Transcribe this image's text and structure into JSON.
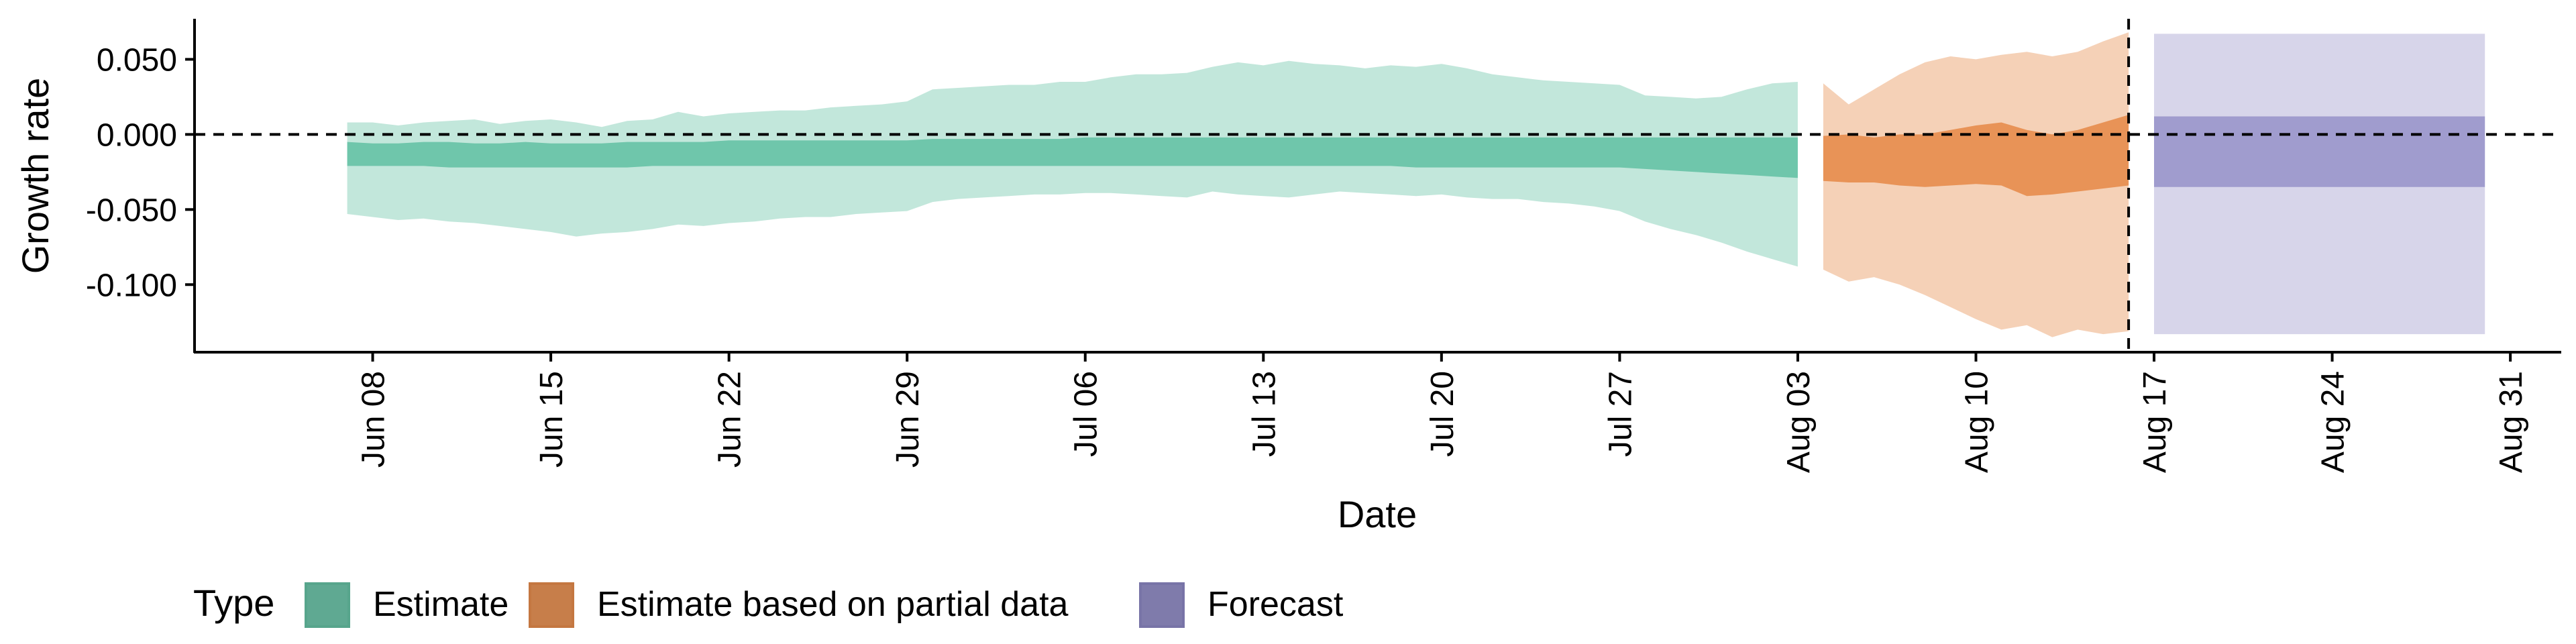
{
  "chart_data": {
    "type": "area",
    "title": "",
    "xlabel": "Date",
    "ylabel": "Growth rate",
    "grid": false,
    "x_type": "date",
    "xlim": [
      "2020-06-01",
      "2020-09-02"
    ],
    "ylim": [
      -0.145,
      0.077
    ],
    "x_ticks": [
      {
        "date": "2020-06-08",
        "label": "Jun 08"
      },
      {
        "date": "2020-06-15",
        "label": "Jun 15"
      },
      {
        "date": "2020-06-22",
        "label": "Jun 22"
      },
      {
        "date": "2020-06-29",
        "label": "Jun 29"
      },
      {
        "date": "2020-07-06",
        "label": "Jul 06"
      },
      {
        "date": "2020-07-13",
        "label": "Jul 13"
      },
      {
        "date": "2020-07-20",
        "label": "Jul 20"
      },
      {
        "date": "2020-07-27",
        "label": "Jul 27"
      },
      {
        "date": "2020-08-03",
        "label": "Aug 03"
      },
      {
        "date": "2020-08-10",
        "label": "Aug 10"
      },
      {
        "date": "2020-08-17",
        "label": "Aug 17"
      },
      {
        "date": "2020-08-24",
        "label": "Aug 24"
      },
      {
        "date": "2020-08-31",
        "label": "Aug 31"
      }
    ],
    "y_ticks": [
      {
        "value": 0.05,
        "label": "0.050"
      },
      {
        "value": 0.0,
        "label": "0.000"
      },
      {
        "value": -0.05,
        "label": "-0.050"
      },
      {
        "value": -0.1,
        "label": "-0.100"
      }
    ],
    "reference_lines": {
      "horizontal_y": 0.0,
      "vertical_date": "2020-08-16"
    },
    "legend": {
      "title": "Type",
      "position": "bottom-left",
      "entries": [
        "Estimate",
        "Estimate based on partial data",
        "Forecast"
      ]
    },
    "series": [
      {
        "name": "Estimate",
        "color": "#66c2a5",
        "outer_opacity": 0.4,
        "inner_opacity": 0.9,
        "x": [
          "2020-06-07",
          "2020-06-08",
          "2020-06-09",
          "2020-06-10",
          "2020-06-11",
          "2020-06-12",
          "2020-06-13",
          "2020-06-14",
          "2020-06-15",
          "2020-06-16",
          "2020-06-17",
          "2020-06-18",
          "2020-06-19",
          "2020-06-20",
          "2020-06-21",
          "2020-06-22",
          "2020-06-23",
          "2020-06-24",
          "2020-06-25",
          "2020-06-26",
          "2020-06-27",
          "2020-06-28",
          "2020-06-29",
          "2020-06-30",
          "2020-07-01",
          "2020-07-02",
          "2020-07-03",
          "2020-07-04",
          "2020-07-05",
          "2020-07-06",
          "2020-07-07",
          "2020-07-08",
          "2020-07-09",
          "2020-07-10",
          "2020-07-11",
          "2020-07-12",
          "2020-07-13",
          "2020-07-14",
          "2020-07-15",
          "2020-07-16",
          "2020-07-17",
          "2020-07-18",
          "2020-07-19",
          "2020-07-20",
          "2020-07-21",
          "2020-07-22",
          "2020-07-23",
          "2020-07-24",
          "2020-07-25",
          "2020-07-26",
          "2020-07-27",
          "2020-07-28",
          "2020-07-29",
          "2020-07-30",
          "2020-07-31",
          "2020-08-01",
          "2020-08-02",
          "2020-08-03"
        ],
        "outer_upper": [
          0.008,
          0.008,
          0.006,
          0.008,
          0.009,
          0.01,
          0.007,
          0.009,
          0.01,
          0.008,
          0.005,
          0.009,
          0.01,
          0.015,
          0.012,
          0.014,
          0.015,
          0.016,
          0.016,
          0.018,
          0.019,
          0.02,
          0.022,
          0.03,
          0.031,
          0.032,
          0.033,
          0.033,
          0.035,
          0.035,
          0.038,
          0.04,
          0.04,
          0.041,
          0.045,
          0.048,
          0.046,
          0.049,
          0.047,
          0.046,
          0.044,
          0.046,
          0.045,
          0.047,
          0.044,
          0.04,
          0.038,
          0.036,
          0.035,
          0.034,
          0.033,
          0.026,
          0.025,
          0.024,
          0.025,
          0.03,
          0.034,
          0.035
        ],
        "outer_lower": [
          -0.053,
          -0.055,
          -0.057,
          -0.056,
          -0.058,
          -0.059,
          -0.061,
          -0.063,
          -0.065,
          -0.068,
          -0.066,
          -0.065,
          -0.063,
          -0.06,
          -0.061,
          -0.059,
          -0.058,
          -0.056,
          -0.055,
          -0.055,
          -0.053,
          -0.052,
          -0.051,
          -0.045,
          -0.043,
          -0.042,
          -0.041,
          -0.04,
          -0.04,
          -0.039,
          -0.039,
          -0.04,
          -0.041,
          -0.042,
          -0.038,
          -0.04,
          -0.041,
          -0.042,
          -0.04,
          -0.038,
          -0.039,
          -0.04,
          -0.041,
          -0.04,
          -0.042,
          -0.043,
          -0.043,
          -0.045,
          -0.046,
          -0.048,
          -0.051,
          -0.058,
          -0.063,
          -0.067,
          -0.072,
          -0.078,
          -0.083,
          -0.088
        ],
        "inner_upper": [
          -0.005,
          -0.006,
          -0.006,
          -0.005,
          -0.005,
          -0.006,
          -0.006,
          -0.005,
          -0.006,
          -0.006,
          -0.006,
          -0.005,
          -0.005,
          -0.005,
          -0.005,
          -0.004,
          -0.004,
          -0.004,
          -0.004,
          -0.004,
          -0.004,
          -0.004,
          -0.004,
          -0.003,
          -0.003,
          -0.003,
          -0.003,
          -0.003,
          -0.003,
          -0.002,
          -0.002,
          -0.002,
          -0.002,
          -0.002,
          -0.002,
          -0.002,
          -0.002,
          -0.002,
          -0.002,
          -0.002,
          -0.002,
          -0.002,
          -0.002,
          -0.002,
          -0.002,
          -0.002,
          -0.002,
          -0.002,
          -0.002,
          -0.002,
          -0.002,
          -0.002,
          -0.002,
          -0.002,
          -0.002,
          -0.002,
          -0.002,
          -0.002
        ],
        "inner_lower": [
          -0.021,
          -0.021,
          -0.021,
          -0.021,
          -0.022,
          -0.022,
          -0.022,
          -0.022,
          -0.022,
          -0.022,
          -0.022,
          -0.022,
          -0.021,
          -0.021,
          -0.021,
          -0.021,
          -0.021,
          -0.021,
          -0.021,
          -0.021,
          -0.021,
          -0.021,
          -0.021,
          -0.021,
          -0.021,
          -0.021,
          -0.021,
          -0.021,
          -0.021,
          -0.021,
          -0.021,
          -0.021,
          -0.021,
          -0.021,
          -0.021,
          -0.021,
          -0.021,
          -0.021,
          -0.021,
          -0.021,
          -0.021,
          -0.021,
          -0.022,
          -0.022,
          -0.022,
          -0.022,
          -0.022,
          -0.022,
          -0.022,
          -0.022,
          -0.022,
          -0.023,
          -0.024,
          -0.025,
          -0.026,
          -0.027,
          -0.028,
          -0.029
        ]
      },
      {
        "name": "Estimate based on partial data",
        "color": "#e78c4c",
        "outer_opacity": 0.4,
        "inner_opacity": 0.9,
        "x": [
          "2020-08-04",
          "2020-08-05",
          "2020-08-06",
          "2020-08-07",
          "2020-08-08",
          "2020-08-09",
          "2020-08-10",
          "2020-08-11",
          "2020-08-12",
          "2020-08-13",
          "2020-08-14",
          "2020-08-15",
          "2020-08-16"
        ],
        "outer_upper": [
          0.034,
          0.02,
          0.03,
          0.04,
          0.048,
          0.052,
          0.05,
          0.053,
          0.055,
          0.052,
          0.055,
          0.062,
          0.068
        ],
        "outer_lower": [
          -0.09,
          -0.098,
          -0.095,
          -0.1,
          -0.107,
          -0.115,
          -0.123,
          -0.13,
          -0.127,
          -0.135,
          -0.13,
          -0.133,
          -0.131
        ],
        "inner_upper": [
          -0.001,
          0.0,
          -0.002,
          0.0,
          0.0,
          0.003,
          0.006,
          0.008,
          0.003,
          0.0,
          0.003,
          0.008,
          0.013
        ],
        "inner_lower": [
          -0.031,
          -0.032,
          -0.032,
          -0.034,
          -0.035,
          -0.034,
          -0.033,
          -0.034,
          -0.041,
          -0.04,
          -0.038,
          -0.036,
          -0.034
        ]
      },
      {
        "name": "Forecast",
        "color": "#8d88c4",
        "outer_opacity": 0.35,
        "inner_opacity": 0.75,
        "x": [
          "2020-08-17",
          "2020-08-30"
        ],
        "outer_upper": [
          0.067,
          0.067
        ],
        "outer_lower": [
          -0.133,
          -0.133
        ],
        "inner_upper": [
          0.012,
          0.012
        ],
        "inner_lower": [
          -0.035,
          -0.035
        ]
      }
    ]
  }
}
